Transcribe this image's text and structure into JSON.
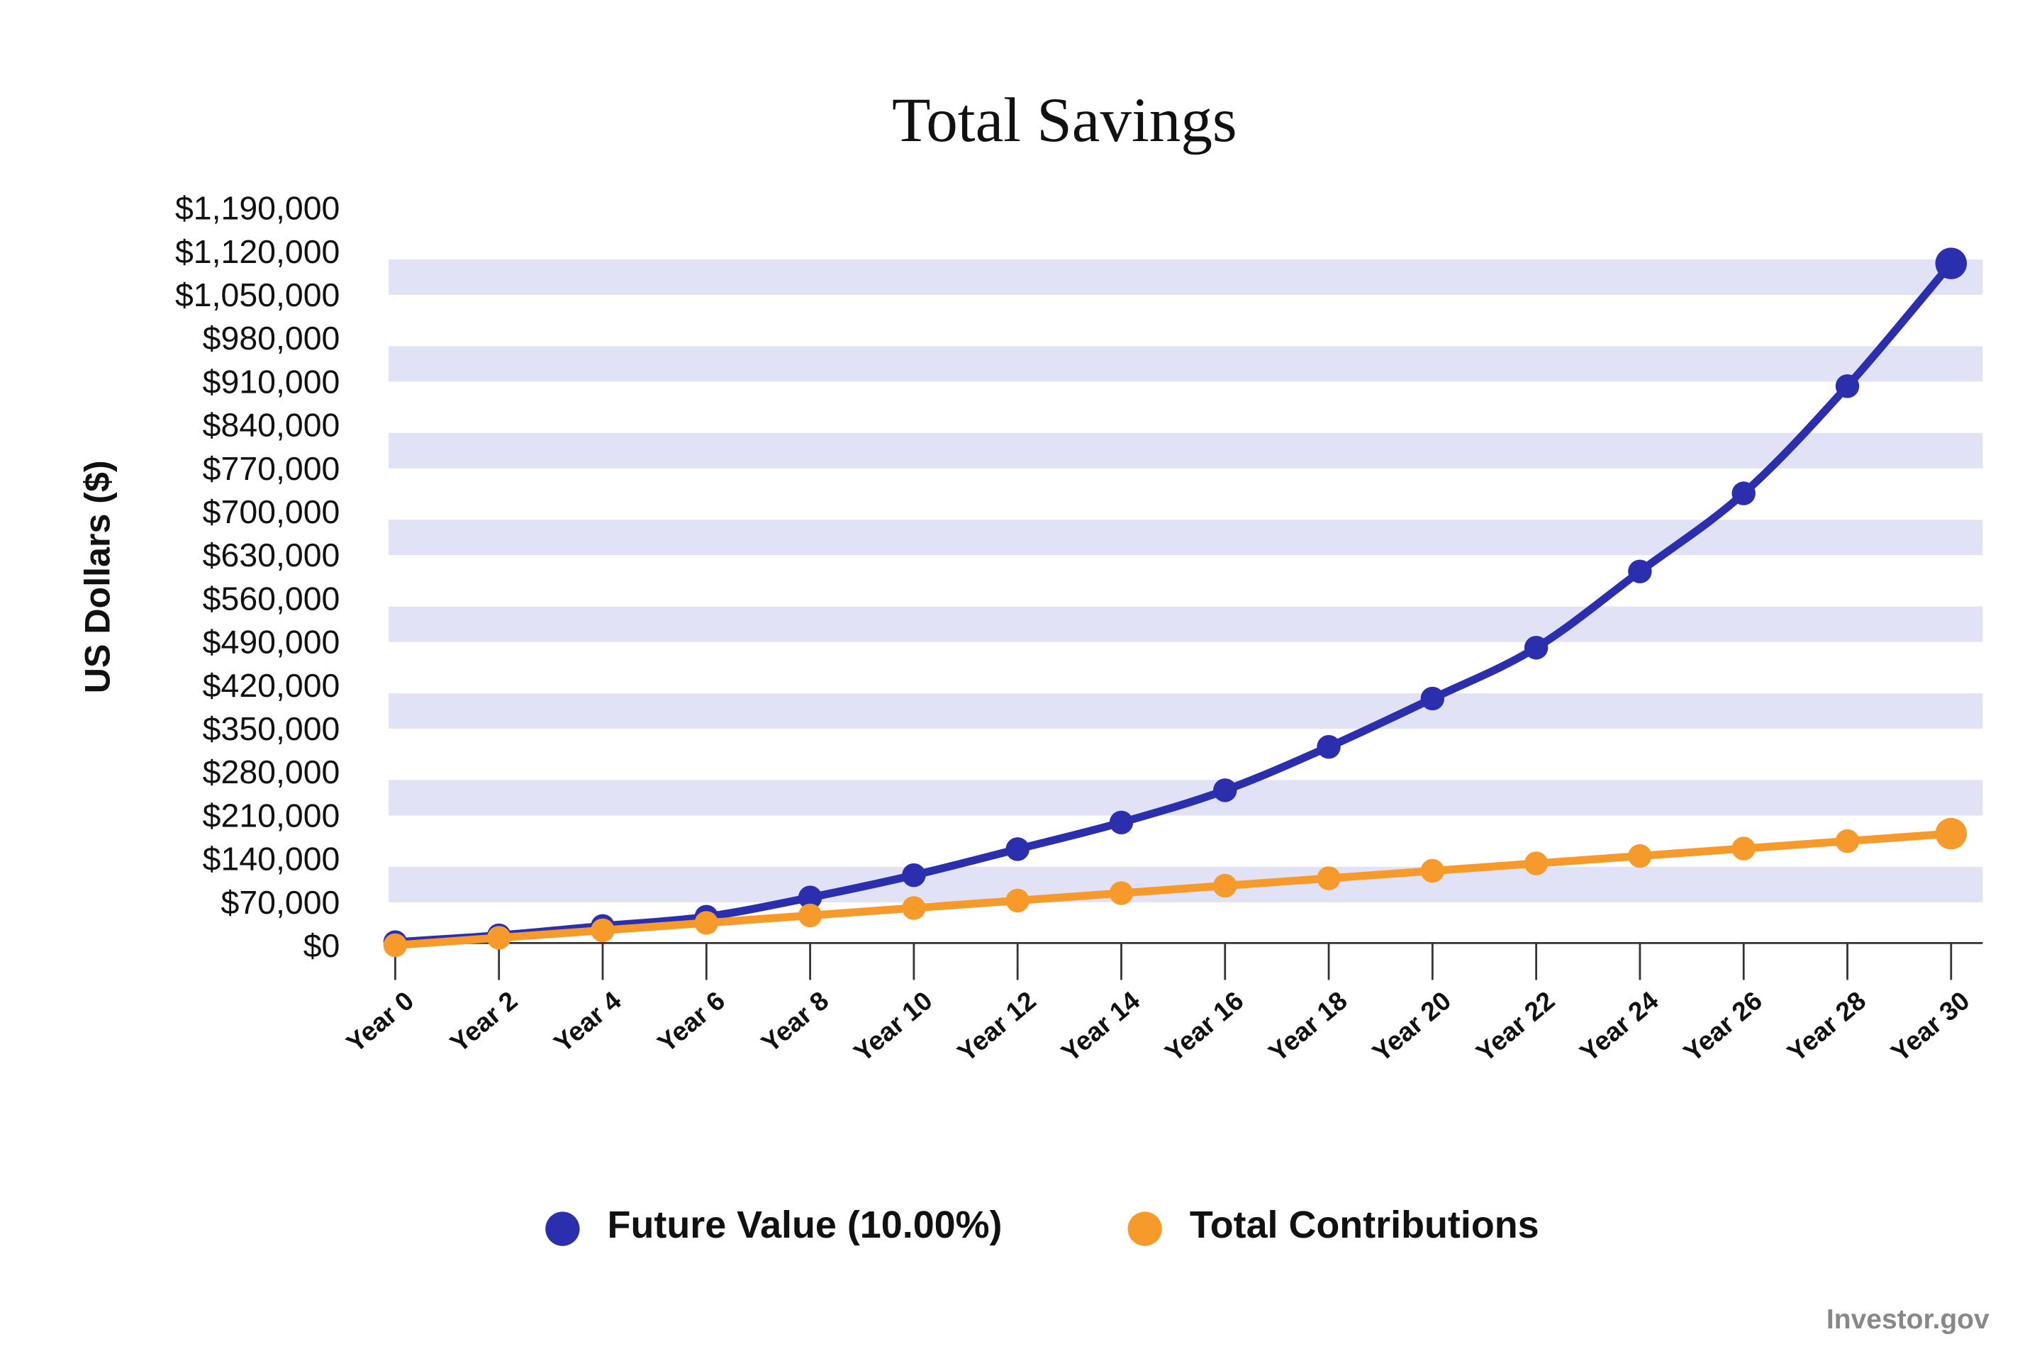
{
  "chart_data": {
    "type": "line",
    "title": "Total Savings",
    "y_label": "US Dollars ($)",
    "source": "Investor.gov",
    "categories": [
      "Year 0",
      "Year 2",
      "Year 4",
      "Year 6",
      "Year 8",
      "Year 10",
      "Year 12",
      "Year 14",
      "Year 16",
      "Year 18",
      "Year 20",
      "Year 22",
      "Year 24",
      "Year 26",
      "Year 28",
      "Year 30"
    ],
    "series": [
      {
        "name": "Future Value (10.00%)",
        "color": "#2b2fad",
        "values": [
          10000,
          21000,
          36000,
          51000,
          82000,
          118000,
          160000,
          203000,
          255000,
          325000,
          403000,
          485000,
          608000,
          734000,
          907000,
          1105000
        ]
      },
      {
        "name": "Total Contributions",
        "color": "#f69b2b",
        "values": [
          5000,
          17000,
          29000,
          41000,
          53000,
          65000,
          77000,
          89000,
          101000,
          113000,
          125000,
          137000,
          149000,
          161000,
          173000,
          185000
        ]
      }
    ],
    "ylim": [
      0,
      1190000
    ],
    "yticks": [
      {
        "value": 0,
        "label": "$0"
      },
      {
        "value": 70000,
        "label": "$70,000"
      },
      {
        "value": 140000,
        "label": "$140,000"
      },
      {
        "value": 210000,
        "label": "$210,000"
      },
      {
        "value": 280000,
        "label": "$280,000"
      },
      {
        "value": 350000,
        "label": "$350,000"
      },
      {
        "value": 420000,
        "label": "$420,000"
      },
      {
        "value": 490000,
        "label": "$490,000"
      },
      {
        "value": 560000,
        "label": "$560,000"
      },
      {
        "value": 630000,
        "label": "$630,000"
      },
      {
        "value": 700000,
        "label": "$700,000"
      },
      {
        "value": 770000,
        "label": "$770,000"
      },
      {
        "value": 840000,
        "label": "$840,000"
      },
      {
        "value": 910000,
        "label": "$910,000"
      },
      {
        "value": 980000,
        "label": "$980,000"
      },
      {
        "value": 1050000,
        "label": "$1,050,000"
      },
      {
        "value": 1120000,
        "label": "$1,120,000"
      },
      {
        "value": 1190000,
        "label": "$1,190,000"
      }
    ],
    "grid": "bands",
    "legend": "bottom"
  }
}
